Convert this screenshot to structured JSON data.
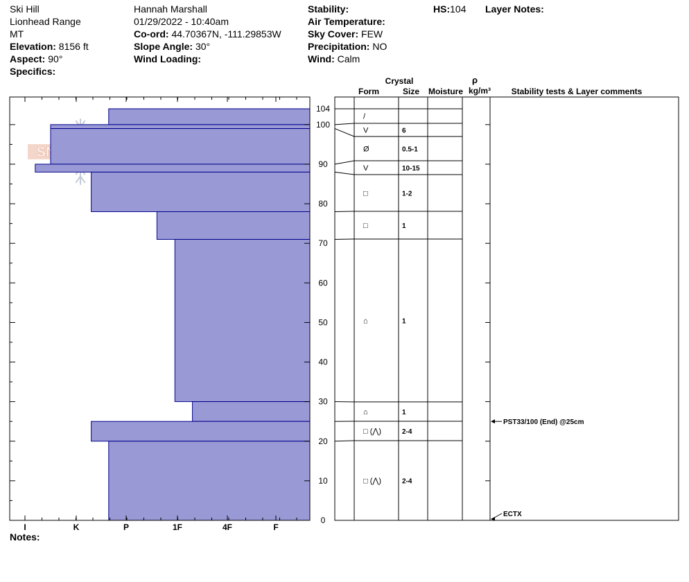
{
  "header": {
    "location": "Ski Hill",
    "range": "Lionhead Range",
    "state": "MT",
    "elevation_label": "Elevation:",
    "elevation": "8156 ft",
    "aspect_label": "Aspect:",
    "aspect": "90°",
    "specifics_label": "Specifics:",
    "observer": "Hannah Marshall",
    "datetime": "01/29/2022 - 10:40am",
    "coord_label": "Co-ord:",
    "coord": "44.70367N, -111.29853W",
    "slope_label": "Slope Angle:",
    "slope": "30°",
    "wind_loading_label": "Wind Loading:",
    "stability_label": "Stability:",
    "air_temp_label": "Air Temperature:",
    "sky_label": "Sky Cover:",
    "sky": "FEW",
    "precip_label": "Precipitation:",
    "precip": "NO",
    "wind_label": "Wind:",
    "wind": "Calm",
    "hs_label": "HS:",
    "hs": "104",
    "layer_notes_label": "Layer Notes:",
    "notes_label": "Notes:"
  },
  "logo": {
    "text": "SNOW PILOT"
  },
  "columns": {
    "crystal": "Crystal",
    "form": "Form",
    "size": "Size",
    "moisture": "Moisture",
    "rho": "ρ",
    "density_unit": "kg/m³",
    "stability": "Stability tests & Layer comments"
  },
  "chart_data": {
    "type": "bar",
    "title": "",
    "y_axis": {
      "range": [
        0,
        104
      ],
      "ticks": [
        0,
        10,
        20,
        30,
        40,
        50,
        60,
        70,
        80,
        90,
        100,
        104
      ]
    },
    "hardness_scale": [
      "I",
      "K",
      "P",
      "1F",
      "4F",
      "F"
    ],
    "layers": [
      {
        "top": 104,
        "bottom": 100,
        "hardness": 1.65,
        "form": "/",
        "size": ""
      },
      {
        "top": 100,
        "bottom": 99,
        "hardness": 0.5,
        "form": "V",
        "size": "6"
      },
      {
        "top": 99,
        "bottom": 90,
        "hardness": 0.5,
        "form": "Ø",
        "size": "0.5-1"
      },
      {
        "top": 90,
        "bottom": 88,
        "hardness": 0.2,
        "form": "V",
        "size": "10-15"
      },
      {
        "top": 88,
        "bottom": 78,
        "hardness": 1.3,
        "form": "□",
        "size": "1-2"
      },
      {
        "top": 78,
        "bottom": 71,
        "hardness": 2.6,
        "form": "□",
        "size": "1"
      },
      {
        "top": 71,
        "bottom": 30,
        "hardness": 2.95,
        "form": "⌂",
        "size": "1"
      },
      {
        "top": 30,
        "bottom": 25,
        "hardness": 3.3,
        "form": "⌂",
        "size": "1"
      },
      {
        "top": 25,
        "bottom": 20,
        "hardness": 1.3,
        "form": "□ (⋀)",
        "size": "2-4"
      },
      {
        "top": 20,
        "bottom": 0,
        "hardness": 1.65,
        "form": "□ (⋀)",
        "size": "2-4"
      }
    ],
    "tests": [
      {
        "depth": 25,
        "label": "PST33/100 (End) @25cm"
      },
      {
        "depth": 0,
        "label": "ECTX"
      }
    ],
    "colors": {
      "fill": "#9999d6",
      "stroke": "#00008b"
    }
  }
}
